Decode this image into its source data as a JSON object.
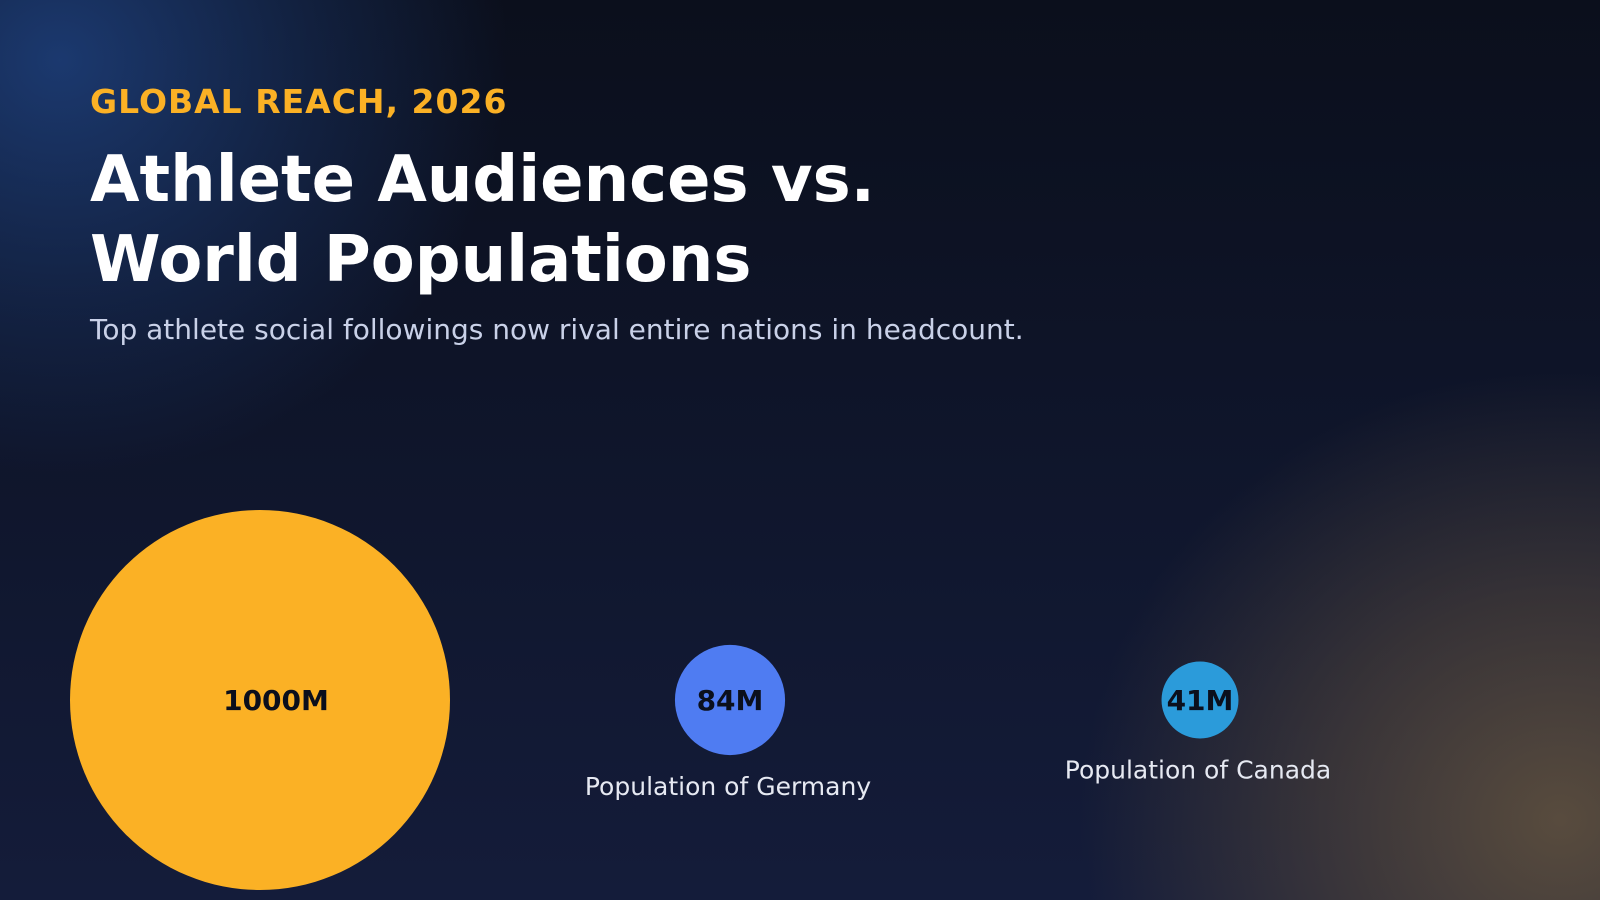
{
  "header": {
    "eyebrow": "GLOBAL REACH, 2026",
    "title": "Athlete Audiences vs. World Populations",
    "subtitle": "Top athlete social followings now rival entire nations in headcount."
  },
  "chart_data": {
    "type": "bubble",
    "unit": "M",
    "items": [
      {
        "label": "",
        "value": 1000,
        "value_label": "1000M",
        "color": "#FBB125"
      },
      {
        "label": "Population of Germany",
        "value": 84,
        "value_label": "84M",
        "color": "#4F7CF2"
      },
      {
        "label": "Population of Canada",
        "value": 41,
        "value_label": "41M",
        "color": "#2B9BDA"
      }
    ]
  }
}
